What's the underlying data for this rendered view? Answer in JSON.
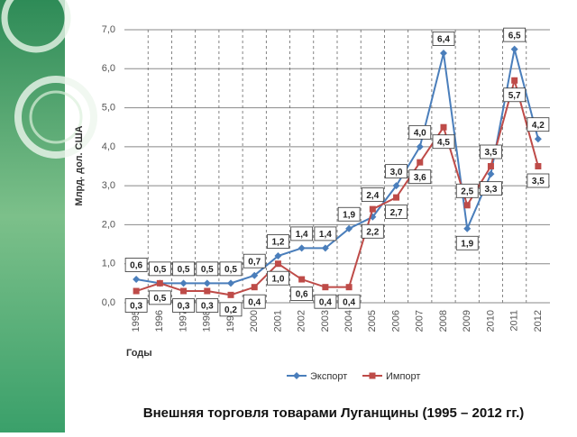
{
  "chart_data": {
    "type": "line",
    "title": "Внешняя торговля товарами Луганщины (1995 – 2012 гг.)",
    "x_label": "Годы",
    "y_label": "Млрд. дол. США",
    "categories": [
      "1995",
      "1996",
      "1997",
      "1998",
      "1999",
      "2000",
      "2001",
      "2002",
      "2003",
      "2004",
      "2005",
      "2006",
      "2007",
      "2008",
      "2009",
      "2010",
      "2011",
      "2012"
    ],
    "series": [
      {
        "name": "Экспорт",
        "color": "#4a7ebb",
        "values": [
          0.6,
          0.5,
          0.5,
          0.5,
          0.5,
          0.7,
          1.2,
          1.4,
          1.4,
          1.9,
          2.2,
          3.0,
          4.0,
          6.4,
          1.9,
          3.3,
          6.5,
          4.2
        ],
        "value_labels": [
          "0,6",
          "0,5",
          "0,5",
          "0,5",
          "0,5",
          "0,7",
          "1,2",
          "1,4",
          "1,4",
          "1,9",
          "2,2",
          "3,0",
          "4,0",
          "6,4",
          "1,9",
          "3,3",
          "6,5",
          "4,2"
        ]
      },
      {
        "name": "Импорт",
        "color": "#be4b48",
        "values": [
          0.3,
          0.5,
          0.3,
          0.3,
          0.2,
          0.4,
          1.0,
          0.6,
          0.4,
          0.4,
          2.4,
          2.7,
          3.6,
          4.5,
          2.5,
          3.5,
          5.7,
          3.5
        ],
        "value_labels": [
          "0,3",
          "0,5",
          "0,3",
          "0,3",
          "0,2",
          "0,4",
          "1,0",
          "0,6",
          "0,4",
          "0,4",
          "2,4",
          "2,7",
          "3,6",
          "4,5",
          "2,5",
          "3,5",
          "5,7",
          "3,5"
        ]
      }
    ],
    "ylim": [
      0,
      7
    ],
    "yticks": [
      {
        "value": 0,
        "label": "0,0"
      },
      {
        "value": 1,
        "label": "1,0"
      },
      {
        "value": 2,
        "label": "2,0"
      },
      {
        "value": 3,
        "label": "3,0"
      },
      {
        "value": 4,
        "label": "4,0"
      },
      {
        "value": 5,
        "label": "5,0"
      },
      {
        "value": 6,
        "label": "6,0"
      },
      {
        "value": 7,
        "label": "7,0"
      }
    ],
    "grid": true,
    "legend": "bottom"
  }
}
